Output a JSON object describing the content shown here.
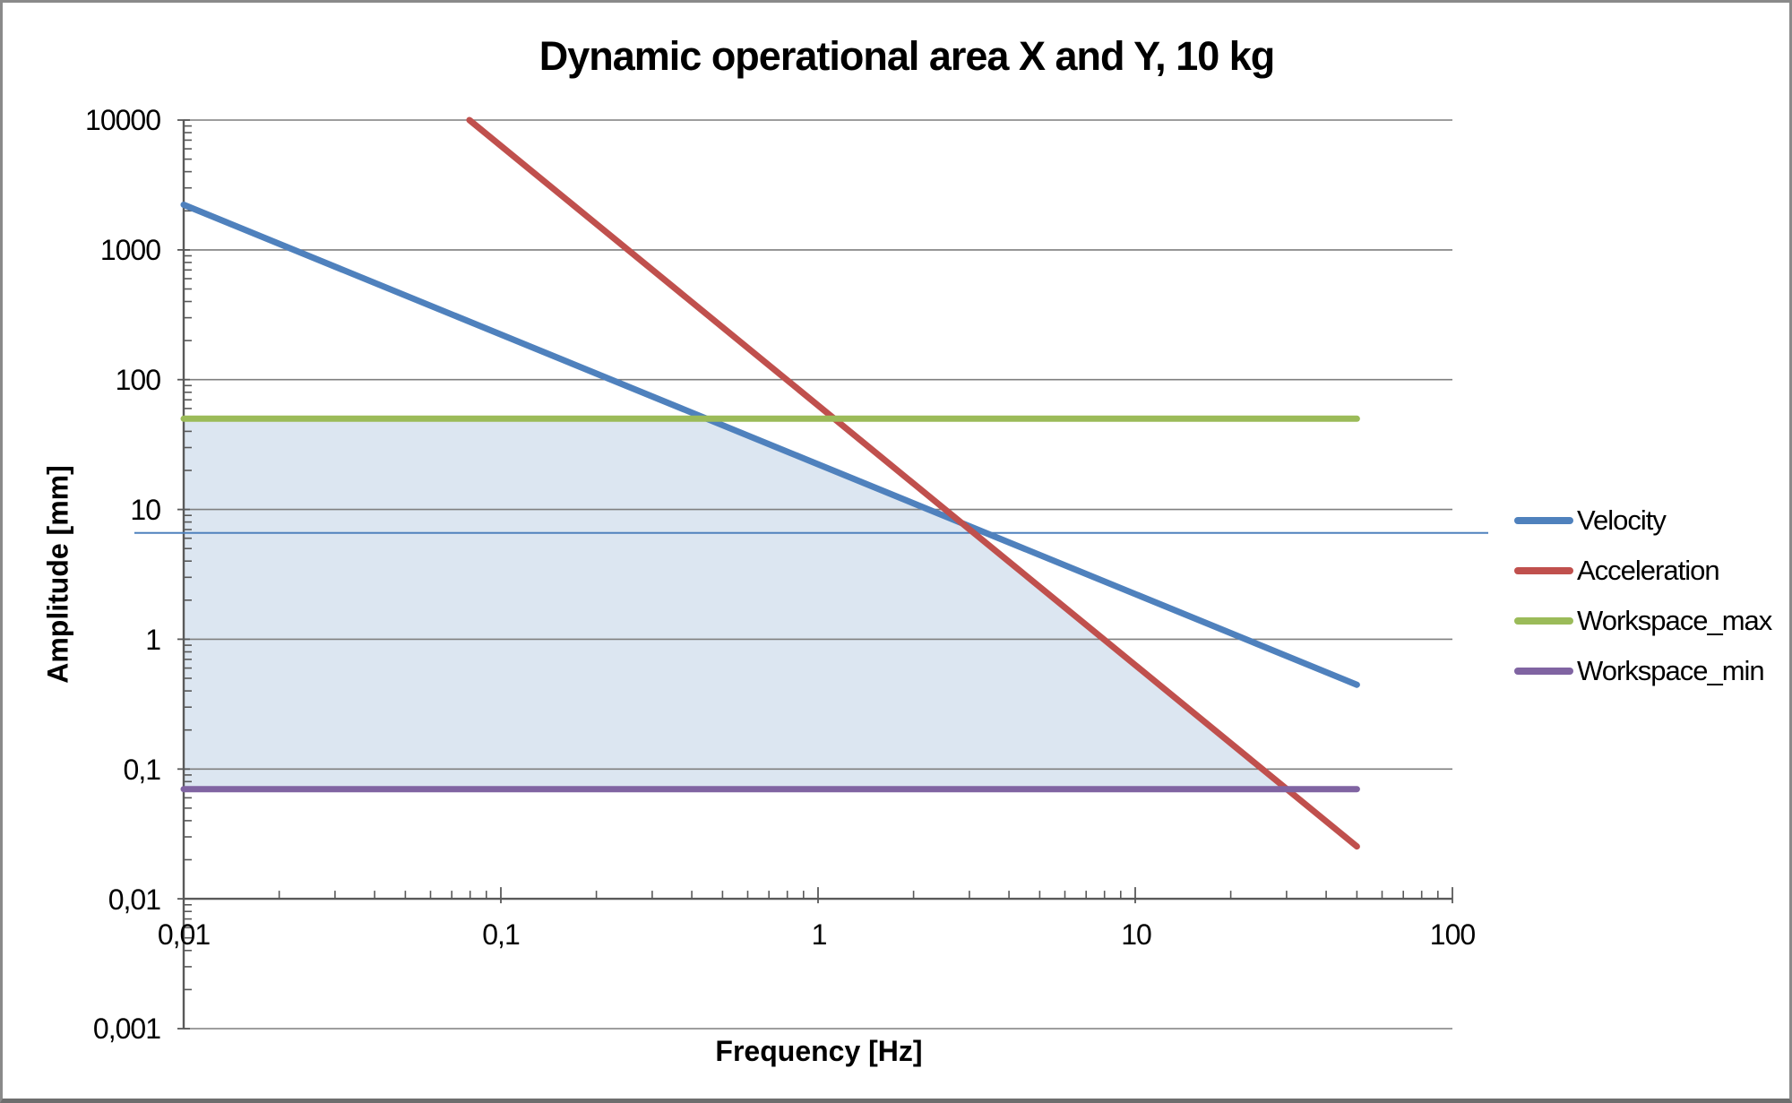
{
  "chart_data": {
    "type": "line",
    "title": "Dynamic operational area X and Y, 10 kg",
    "xlabel": "Frequency [Hz]",
    "ylabel": "Amplitude [mm]",
    "x_scale": "log",
    "y_scale": "log",
    "xlim": [
      0.01,
      100
    ],
    "ylim": [
      0.001,
      10000
    ],
    "x_ticks": [
      "0,01",
      "0,1",
      "1",
      "10",
      "100"
    ],
    "x_tick_values": [
      0.01,
      0.1,
      1,
      10,
      100
    ],
    "y_ticks": [
      "10000",
      "1000",
      "100",
      "10",
      "1",
      "0,1",
      "0,01",
      "0,001"
    ],
    "y_tick_values": [
      10000,
      1000,
      100,
      10,
      1,
      0.1,
      0.01,
      0.001
    ],
    "grid": "horizontal-decades-only",
    "legend_position": "right-middle",
    "colors": {
      "velocity": "#4f81bd",
      "acceleration": "#c0504d",
      "workspace_max": "#9bbb59",
      "workspace_min": "#8064a2",
      "region_fill": "#dce6f1",
      "gridline": "#7f7f7f",
      "axis": "#595959",
      "text": "#000000"
    },
    "series": [
      {
        "name": "Velocity",
        "color": "#4f81bd",
        "points": [
          [
            0.01,
            2228
          ],
          [
            50,
            0.446
          ]
        ]
      },
      {
        "name": "Acceleration",
        "color": "#c0504d",
        "points": [
          [
            0.0796,
            10000
          ],
          [
            50,
            0.0253
          ]
        ]
      },
      {
        "name": "Workspace_max",
        "color": "#9bbb59",
        "points": [
          [
            0.01,
            50
          ],
          [
            50,
            50
          ]
        ]
      },
      {
        "name": "Workspace_min",
        "color": "#8064a2",
        "points": [
          [
            0.01,
            0.07
          ],
          [
            50,
            0.07
          ]
        ]
      }
    ],
    "reference_line": {
      "amplitude_mm": 6.6,
      "color": "#4f81bd"
    },
    "shaded_region": {
      "color": "#dce6f1",
      "vertices": [
        [
          0.01,
          50
        ],
        [
          0.446,
          50
        ],
        [
          2.84,
          7.84
        ],
        [
          30.1,
          0.07
        ],
        [
          0.01,
          0.07
        ]
      ]
    }
  }
}
